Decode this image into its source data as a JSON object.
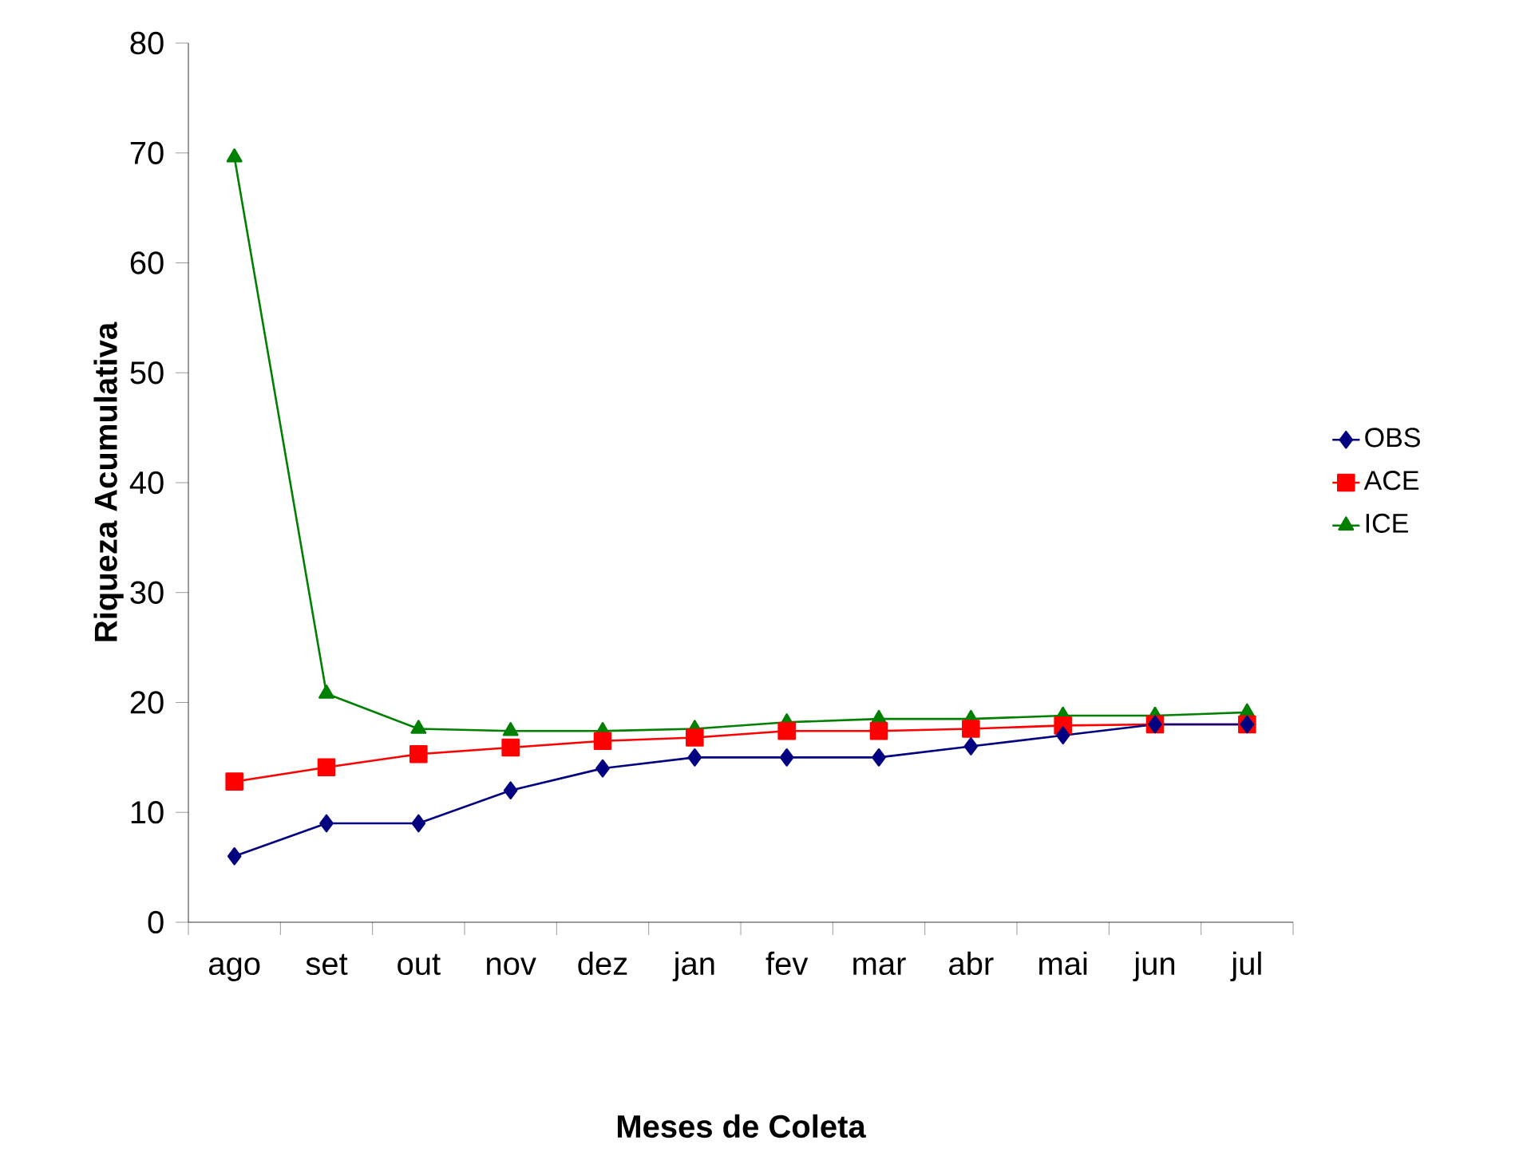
{
  "chart_data": {
    "type": "line",
    "xlabel": "Meses de Coleta",
    "ylabel": "Riqueza Acumulativa",
    "categories": [
      "ago",
      "set",
      "out",
      "nov",
      "dez",
      "jan",
      "fev",
      "mar",
      "abr",
      "mai",
      "jun",
      "jul"
    ],
    "ylim": [
      0,
      80
    ],
    "yticks": [
      0,
      10,
      20,
      30,
      40,
      50,
      60,
      70,
      80
    ],
    "legend": "right",
    "series": [
      {
        "name": "OBS",
        "color": "#000080",
        "marker": "diamond",
        "values": [
          6,
          9,
          9,
          12,
          14,
          15,
          15,
          15,
          16,
          17,
          18,
          18
        ]
      },
      {
        "name": "ACE",
        "color": "#ff0000",
        "marker": "square",
        "values": [
          12.8,
          14.1,
          15.3,
          15.9,
          16.5,
          16.8,
          17.4,
          17.4,
          17.6,
          17.9,
          18,
          18
        ]
      },
      {
        "name": "ICE",
        "color": "#008000",
        "marker": "triangle",
        "values": [
          69.6,
          20.8,
          17.6,
          17.4,
          17.4,
          17.6,
          18.2,
          18.5,
          18.5,
          18.8,
          18.8,
          19.1
        ]
      }
    ]
  }
}
